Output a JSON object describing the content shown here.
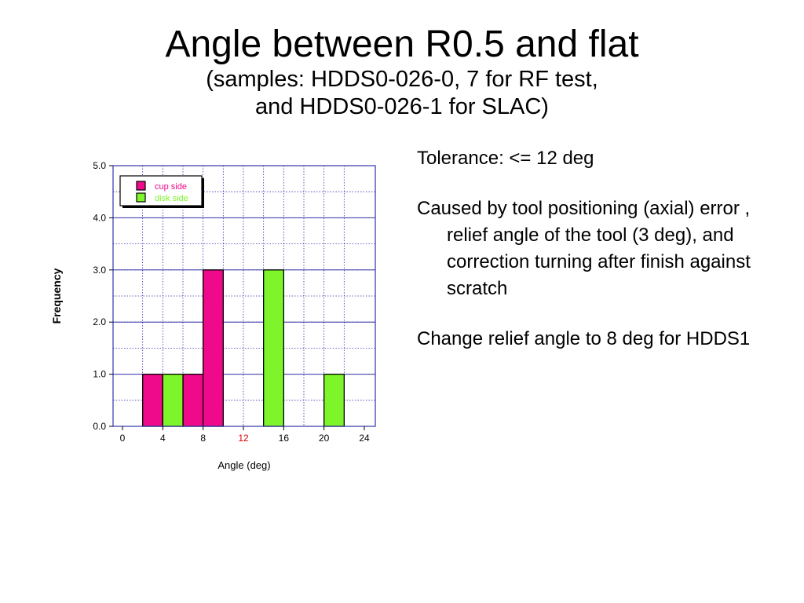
{
  "title": "Angle between R0.5 and flat",
  "subtitle_lines": [
    "(samples: HDDS0-026-0, 7 for RF test,",
    "and HDDS0-026-1 for SLAC)"
  ],
  "notes": [
    "Tolerance: <= 12 deg",
    "Caused by tool positioning (axial) error , relief angle of the tool (3 deg), and correction turning after finish against scratch",
    "Change relief angle to 8 deg for HDDS1"
  ],
  "colors": {
    "cup_side": "#ee0a8a",
    "disk_side": "#7ef52a",
    "grid": "#3333aa",
    "tolerance_tick": "#dd0000"
  },
  "chart_data": {
    "type": "bar",
    "xlabel": "Angle (deg)",
    "ylabel": "Frequency",
    "xlim": [
      0,
      24
    ],
    "ylim": [
      0,
      5
    ],
    "xticks": [
      "0",
      "4",
      "8",
      "12",
      "16",
      "20",
      "24"
    ],
    "yticks": [
      "0.0",
      "1.0",
      "2.0",
      "3.0",
      "4.0",
      "5.0"
    ],
    "highlight_xtick": "12",
    "grid": true,
    "legend_position": "top-left",
    "bin_width": 2,
    "series": [
      {
        "name": "cup side",
        "color": "#ee0a8a",
        "bins": [
          [
            2,
            4,
            1
          ],
          [
            6,
            8,
            1
          ],
          [
            8,
            10,
            3
          ]
        ]
      },
      {
        "name": "disk side",
        "color": "#7ef52a",
        "bins": [
          [
            4,
            6,
            1
          ],
          [
            14,
            16,
            3
          ],
          [
            20,
            22,
            1
          ]
        ]
      }
    ]
  }
}
